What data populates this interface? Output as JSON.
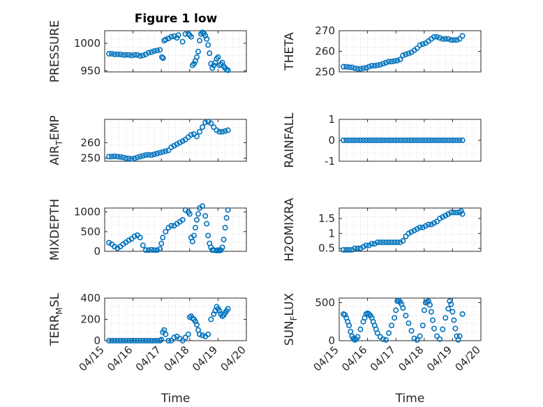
{
  "figure_title": "Figure 1 low",
  "colors": {
    "marker": "#0072BD",
    "axis": "#262626",
    "grid": "#c8c8c8"
  },
  "chart_data": [
    {
      "type": "scatter",
      "title": "Figure 1 low",
      "ylabel": "PRESSURE",
      "ylabel_sub": "",
      "ylim": [
        948,
        1023
      ],
      "yticks": [
        950,
        1000
      ],
      "xlim": [
        "04/15",
        "04/20"
      ],
      "xticks": [],
      "grid": true,
      "x": [
        15.15,
        15.25,
        15.35,
        15.45,
        15.55,
        15.65,
        15.75,
        15.85,
        15.95,
        16.05,
        16.15,
        16.25,
        16.35,
        16.45,
        16.55,
        16.65,
        16.75,
        16.85,
        16.95,
        17.02,
        17.06,
        17.1,
        17.15,
        17.25,
        17.35,
        17.45,
        17.55,
        17.6,
        17.75,
        17.85,
        17.95,
        18.0,
        18.05,
        18.1,
        18.15,
        18.2,
        18.25,
        18.3,
        18.35,
        18.4,
        18.45,
        18.5,
        18.55,
        18.6,
        18.65,
        18.7,
        18.75,
        18.8,
        18.85,
        18.9,
        18.95,
        19.0,
        19.05,
        19.1,
        19.15,
        19.2,
        19.25,
        19.3,
        19.35
      ],
      "y": [
        981,
        981,
        980,
        980,
        980,
        979,
        979,
        979,
        978,
        979,
        979,
        977,
        978,
        980,
        983,
        984,
        986,
        987,
        988,
        975,
        973,
        1005,
        1007,
        1009,
        1012,
        1013,
        1010,
        1015,
        1003,
        1017,
        1017,
        1015,
        1012,
        960,
        963,
        968,
        975,
        985,
        1005,
        1017,
        1020,
        1018,
        1014,
        1008,
        997,
        982,
        963,
        955,
        960,
        965,
        972,
        975,
        960,
        962,
        965,
        958,
        955,
        952,
        951
      ]
    },
    {
      "type": "scatter",
      "ylabel": "THETA",
      "ylabel_sub": "",
      "ylim": [
        250,
        270
      ],
      "yticks": [
        250,
        260,
        270
      ],
      "xlim": [
        "04/15",
        "04/20"
      ],
      "xticks": [],
      "grid": true,
      "x": [
        15.15,
        15.25,
        15.35,
        15.45,
        15.55,
        15.65,
        15.75,
        15.85,
        15.95,
        16.05,
        16.15,
        16.25,
        16.35,
        16.45,
        16.55,
        16.65,
        16.75,
        16.85,
        16.95,
        17.05,
        17.15,
        17.25,
        17.35,
        17.45,
        17.55,
        17.65,
        17.75,
        17.85,
        17.95,
        18.05,
        18.15,
        18.25,
        18.35,
        18.45,
        18.55,
        18.65,
        18.75,
        18.85,
        18.95,
        19.05,
        19.15,
        19.25,
        19.35
      ],
      "y": [
        252.5,
        252.5,
        252.3,
        252.2,
        251.8,
        251.5,
        251.5,
        251.8,
        252,
        252.5,
        253,
        253,
        253.2,
        253.5,
        254,
        254.5,
        255,
        255,
        255.3,
        255.5,
        256,
        258,
        258.5,
        259,
        259.5,
        260.5,
        261.5,
        263,
        263.5,
        264,
        265,
        266,
        267,
        267,
        266.5,
        266,
        266,
        266,
        265.5,
        265.5,
        265.5,
        266,
        267.5
      ]
    },
    {
      "type": "scatter",
      "ylabel": "AIR",
      "ylabel_sub": "T",
      "ylabel_rest": "EMP",
      "ylim": [
        248,
        275
      ],
      "yticks": [
        250,
        260
      ],
      "xlim": [
        "04/15",
        "04/20"
      ],
      "xticks": [],
      "grid": true,
      "x": [
        15.15,
        15.25,
        15.35,
        15.45,
        15.55,
        15.65,
        15.75,
        15.85,
        15.95,
        16.05,
        16.15,
        16.25,
        16.35,
        16.45,
        16.55,
        16.65,
        16.75,
        16.85,
        16.95,
        17.05,
        17.15,
        17.25,
        17.35,
        17.45,
        17.55,
        17.65,
        17.75,
        17.85,
        17.95,
        18.05,
        18.15,
        18.25,
        18.35,
        18.45,
        18.55,
        18.65,
        18.75,
        18.85,
        18.95,
        19.05,
        19.15,
        19.25,
        19.35
      ],
      "y": [
        251,
        251,
        251.2,
        251,
        250.8,
        250.5,
        250,
        249.8,
        249.5,
        249.8,
        250.5,
        251,
        251.5,
        252,
        252.2,
        252,
        252.5,
        253,
        253.5,
        254,
        254.5,
        255,
        257,
        258,
        259,
        260,
        261,
        262,
        263.5,
        265,
        265.5,
        264,
        267,
        270,
        273,
        273.5,
        272.5,
        270,
        268,
        267,
        267,
        267.5,
        268
      ]
    },
    {
      "type": "scatter",
      "ylabel": "RAINFALL",
      "ylabel_sub": "",
      "ylim": [
        -1,
        1
      ],
      "yticks": [
        -1,
        0,
        1
      ],
      "xlim": [
        "04/15",
        "04/20"
      ],
      "xticks": [],
      "grid": true,
      "x": [
        15.15,
        15.25,
        15.35,
        15.45,
        15.55,
        15.65,
        15.75,
        15.85,
        15.95,
        16.05,
        16.15,
        16.25,
        16.35,
        16.45,
        16.55,
        16.65,
        16.75,
        16.85,
        16.95,
        17.05,
        17.15,
        17.25,
        17.35,
        17.45,
        17.55,
        17.65,
        17.75,
        17.85,
        17.95,
        18.05,
        18.15,
        18.25,
        18.35,
        18.45,
        18.55,
        18.65,
        18.75,
        18.85,
        18.95,
        19.05,
        19.15,
        19.25,
        19.35
      ],
      "y": [
        0,
        0,
        0,
        0,
        0,
        0,
        0,
        0,
        0,
        0,
        0,
        0,
        0,
        0,
        0,
        0,
        0,
        0,
        0,
        0,
        0,
        0,
        0,
        0,
        0,
        0,
        0,
        0,
        0,
        0,
        0,
        0,
        0,
        0,
        0,
        0,
        0,
        0,
        0,
        0,
        0,
        0,
        0
      ]
    },
    {
      "type": "scatter",
      "ylabel": "MIXDEPTH",
      "ylabel_sub": "",
      "ylim": [
        0,
        1100
      ],
      "yticks": [
        0,
        500,
        1000
      ],
      "xlim": [
        "04/15",
        "04/20"
      ],
      "xticks": [],
      "grid": true,
      "x": [
        15.15,
        15.25,
        15.35,
        15.45,
        15.55,
        15.65,
        15.75,
        15.85,
        15.95,
        16.05,
        16.15,
        16.25,
        16.35,
        16.45,
        16.55,
        16.65,
        16.75,
        16.85,
        16.95,
        17.0,
        17.05,
        17.15,
        17.25,
        17.35,
        17.45,
        17.55,
        17.65,
        17.75,
        17.85,
        17.95,
        18.0,
        18.05,
        18.1,
        18.15,
        18.2,
        18.25,
        18.3,
        18.35,
        18.45,
        18.55,
        18.6,
        18.65,
        18.7,
        18.75,
        18.8,
        18.85,
        18.95,
        19.0,
        19.05,
        19.1,
        19.15,
        19.2,
        19.25,
        19.3,
        19.35
      ],
      "y": [
        220,
        180,
        120,
        80,
        120,
        180,
        230,
        280,
        320,
        380,
        410,
        350,
        150,
        30,
        30,
        40,
        30,
        30,
        60,
        200,
        350,
        500,
        600,
        650,
        650,
        700,
        750,
        800,
        1050,
        1000,
        950,
        350,
        250,
        400,
        600,
        800,
        950,
        1100,
        1150,
        900,
        700,
        400,
        200,
        100,
        30,
        30,
        20,
        30,
        20,
        30,
        100,
        300,
        600,
        850,
        1050
      ]
    },
    {
      "type": "scatter",
      "ylabel": "H2OMIXRA",
      "ylabel_sub": "",
      "ylim": [
        0.4,
        1.85
      ],
      "yticks": [
        0.5,
        1,
        1.5
      ],
      "xlim": [
        "04/15",
        "04/20"
      ],
      "xticks": [],
      "grid": true,
      "x": [
        15.15,
        15.25,
        15.35,
        15.45,
        15.55,
        15.65,
        15.75,
        15.85,
        15.95,
        16.05,
        16.15,
        16.25,
        16.35,
        16.45,
        16.55,
        16.65,
        16.75,
        16.85,
        16.95,
        17.05,
        17.15,
        17.25,
        17.35,
        17.45,
        17.55,
        17.65,
        17.75,
        17.85,
        17.95,
        18.05,
        18.15,
        18.25,
        18.35,
        18.45,
        18.55,
        18.65,
        18.75,
        18.85,
        18.95,
        19.05,
        19.15,
        19.25,
        19.3,
        19.35
      ],
      "y": [
        0.45,
        0.45,
        0.45,
        0.45,
        0.5,
        0.5,
        0.5,
        0.55,
        0.6,
        0.6,
        0.65,
        0.65,
        0.7,
        0.7,
        0.7,
        0.7,
        0.7,
        0.7,
        0.7,
        0.7,
        0.7,
        0.75,
        0.9,
        1.0,
        1.05,
        1.1,
        1.15,
        1.2,
        1.2,
        1.25,
        1.3,
        1.3,
        1.35,
        1.4,
        1.5,
        1.55,
        1.6,
        1.65,
        1.7,
        1.7,
        1.7,
        1.7,
        1.75,
        1.65
      ]
    },
    {
      "type": "scatter",
      "ylabel": "TERR",
      "ylabel_sub": "M",
      "ylabel_rest": "SL",
      "ylim": [
        0,
        400
      ],
      "yticks": [
        0,
        200,
        400
      ],
      "xlim": [
        "04/15",
        "04/20"
      ],
      "xticks": [
        "04/15",
        "04/16",
        "04/17",
        "04/18",
        "04/19",
        "04/20"
      ],
      "xlabel": "Time",
      "grid": true,
      "x": [
        15.15,
        15.25,
        15.35,
        15.45,
        15.55,
        15.65,
        15.75,
        15.85,
        15.95,
        16.05,
        16.15,
        16.25,
        16.35,
        16.45,
        16.55,
        16.65,
        16.75,
        16.85,
        16.95,
        17.0,
        17.05,
        17.1,
        17.15,
        17.25,
        17.35,
        17.45,
        17.55,
        17.65,
        17.75,
        17.85,
        17.95,
        18.0,
        18.05,
        18.1,
        18.15,
        18.2,
        18.25,
        18.3,
        18.35,
        18.45,
        18.55,
        18.65,
        18.75,
        18.85,
        18.9,
        18.95,
        19.0,
        19.05,
        19.1,
        19.15,
        19.2,
        19.25,
        19.3,
        19.35
      ],
      "y": [
        0,
        0,
        0,
        0,
        0,
        0,
        0,
        0,
        0,
        0,
        0,
        0,
        0,
        0,
        0,
        0,
        0,
        0,
        0,
        10,
        80,
        100,
        60,
        0,
        0,
        30,
        40,
        20,
        0,
        30,
        60,
        220,
        230,
        210,
        200,
        180,
        150,
        100,
        60,
        50,
        40,
        60,
        200,
        250,
        280,
        320,
        300,
        280,
        250,
        230,
        240,
        260,
        280,
        300
      ]
    },
    {
      "type": "scatter",
      "ylabel": "SUN",
      "ylabel_sub": "F",
      "ylabel_rest": "LUX",
      "ylim": [
        0,
        560
      ],
      "yticks": [
        0,
        500
      ],
      "xlim": [
        "04/15",
        "04/20"
      ],
      "xticks": [
        "04/15",
        "04/16",
        "04/17",
        "04/18",
        "04/19",
        "04/20"
      ],
      "xlabel": "Time",
      "grid": true,
      "x": [
        15.15,
        15.2,
        15.25,
        15.3,
        15.35,
        15.4,
        15.45,
        15.5,
        15.55,
        15.6,
        15.65,
        15.75,
        15.85,
        15.9,
        15.95,
        16.0,
        16.05,
        16.1,
        16.15,
        16.2,
        16.25,
        16.3,
        16.35,
        16.45,
        16.55,
        16.65,
        16.75,
        16.85,
        16.95,
        17.0,
        17.05,
        17.1,
        17.15,
        17.2,
        17.25,
        17.35,
        17.45,
        17.55,
        17.65,
        17.75,
        17.85,
        17.95,
        18.0,
        18.05,
        18.1,
        18.15,
        18.2,
        18.25,
        18.3,
        18.35,
        18.45,
        18.55,
        18.65,
        18.75,
        18.85,
        18.9,
        18.95,
        19.0,
        19.05,
        19.1,
        19.15,
        19.2,
        19.25,
        19.35
      ],
      "y": [
        350,
        340,
        300,
        250,
        200,
        120,
        60,
        30,
        10,
        20,
        50,
        150,
        250,
        300,
        350,
        360,
        350,
        330,
        300,
        250,
        200,
        150,
        100,
        50,
        20,
        10,
        100,
        200,
        300,
        400,
        520,
        530,
        510,
        480,
        430,
        330,
        230,
        130,
        30,
        10,
        60,
        200,
        400,
        500,
        510,
        520,
        470,
        380,
        270,
        160,
        60,
        20,
        150,
        300,
        420,
        520,
        480,
        380,
        270,
        160,
        60,
        10,
        60,
        350
      ]
    }
  ]
}
